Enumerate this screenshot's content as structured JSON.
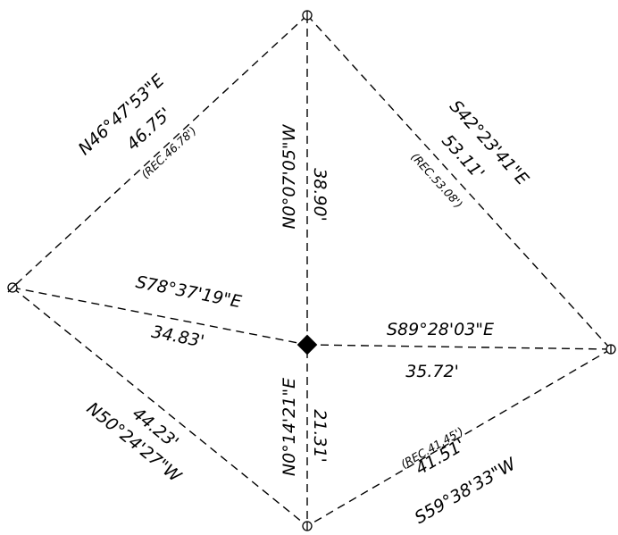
{
  "course_labels": {
    "nw_bearing": "N46°47'53\"E",
    "nw_distance": "46.75'",
    "nw_record": "(REC.46.78')",
    "ne_bearing": "S42°23'41\"E",
    "ne_distance": "53.11'",
    "ne_record": "(REC.53.08')",
    "north_bearing": "N0°07'05\"W",
    "north_distance": "38.90'",
    "west_bearing": "S78°37'19\"E",
    "west_distance": "34.83'",
    "east_bearing": "S89°28'03\"E",
    "east_distance": "35.72'",
    "sw_distance": "44.23'",
    "sw_bearing": "N50°24'27\"W",
    "south_bearing": "N0°14'21\"E",
    "south_distance": "21.31'",
    "se_record": "(REC.41.45')",
    "se_distance": "41.51'",
    "se_bearing": "S59°38'33\"W"
  },
  "colors": {
    "ink": "#000000",
    "background": "#ffffff"
  }
}
